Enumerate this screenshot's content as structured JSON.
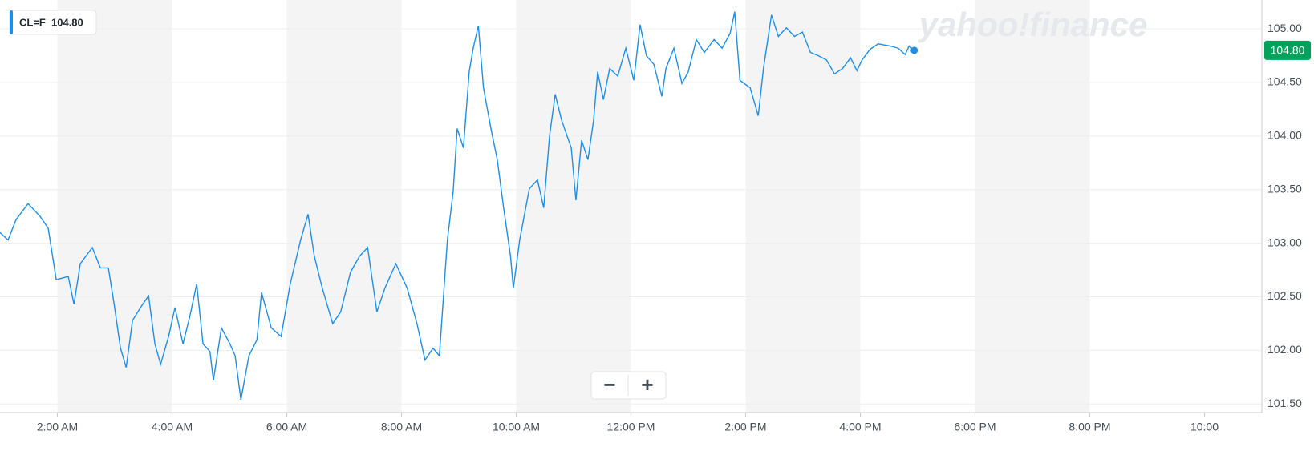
{
  "chart_data": {
    "type": "line",
    "x": [
      1.0,
      1.14,
      1.28,
      1.49,
      1.7,
      1.84,
      1.98,
      2.19,
      2.29,
      2.4,
      2.61,
      2.75,
      2.89,
      2.99,
      3.1,
      3.2,
      3.31,
      3.45,
      3.59,
      3.7,
      3.8,
      3.94,
      4.05,
      4.19,
      4.31,
      4.43,
      4.54,
      4.66,
      4.72,
      4.86,
      5.01,
      5.1,
      5.2,
      5.34,
      5.48,
      5.56,
      5.73,
      5.9,
      6.06,
      6.24,
      6.37,
      6.48,
      6.62,
      6.8,
      6.94,
      7.11,
      7.27,
      7.41,
      7.57,
      7.71,
      7.9,
      8.1,
      8.27,
      8.41,
      8.55,
      8.66,
      8.8,
      8.9,
      8.97,
      9.08,
      9.18,
      9.25,
      9.34,
      9.43,
      9.56,
      9.67,
      9.78,
      9.9,
      9.95,
      10.06,
      10.23,
      10.37,
      10.48,
      10.58,
      10.68,
      10.79,
      10.96,
      11.04,
      11.14,
      11.25,
      11.35,
      11.42,
      11.52,
      11.63,
      11.77,
      11.91,
      12.05,
      12.16,
      12.27,
      12.4,
      12.54,
      12.61,
      12.75,
      12.89,
      13.0,
      13.14,
      13.28,
      13.45,
      13.59,
      13.73,
      13.81,
      13.9,
      14.08,
      14.22,
      14.31,
      14.45,
      14.57,
      14.71,
      14.85,
      14.99,
      15.13,
      15.27,
      15.41,
      15.55,
      15.69,
      15.83,
      15.94,
      16.03,
      16.17,
      16.31,
      16.52,
      16.66,
      16.78,
      16.85,
      16.94
    ],
    "series": [
      {
        "name": "CL=F",
        "color": "#1e8fe8",
        "values": [
          103.1,
          103.03,
          103.22,
          103.37,
          103.25,
          103.14,
          102.66,
          102.69,
          102.43,
          102.81,
          102.96,
          102.77,
          102.77,
          102.43,
          102.02,
          101.84,
          102.28,
          102.4,
          102.51,
          102.06,
          101.87,
          102.13,
          102.4,
          102.06,
          102.32,
          102.62,
          102.06,
          101.99,
          101.72,
          102.21,
          102.06,
          101.95,
          101.54,
          101.95,
          102.1,
          102.54,
          102.21,
          102.13,
          102.62,
          103.03,
          103.27,
          102.88,
          102.58,
          102.25,
          102.36,
          102.73,
          102.88,
          102.96,
          102.36,
          102.58,
          102.81,
          102.58,
          102.25,
          101.91,
          102.02,
          101.95,
          103.03,
          103.48,
          104.07,
          103.89,
          104.6,
          104.82,
          105.03,
          104.45,
          104.07,
          103.78,
          103.33,
          102.88,
          102.58,
          103.03,
          103.51,
          103.59,
          103.33,
          104.0,
          104.39,
          104.15,
          103.89,
          103.4,
          103.96,
          103.78,
          104.15,
          104.6,
          104.34,
          104.63,
          104.56,
          104.82,
          104.52,
          105.04,
          104.75,
          104.67,
          104.37,
          104.63,
          104.82,
          104.49,
          104.6,
          104.9,
          104.78,
          104.9,
          104.82,
          104.96,
          105.16,
          104.52,
          104.45,
          104.19,
          104.63,
          105.13,
          104.93,
          105.01,
          104.93,
          104.97,
          104.78,
          104.75,
          104.71,
          104.58,
          104.63,
          104.73,
          104.61,
          104.71,
          104.81,
          104.86,
          104.84,
          104.82,
          104.76,
          104.84,
          104.8
        ]
      }
    ],
    "last_price": {
      "value": 104.8,
      "label": "104.80"
    },
    "xlim": [
      1,
      23
    ],
    "xticks": [
      {
        "value": 2,
        "label": "2:00 AM"
      },
      {
        "value": 4,
        "label": "4:00 AM"
      },
      {
        "value": 6,
        "label": "6:00 AM"
      },
      {
        "value": 8,
        "label": "8:00 AM"
      },
      {
        "value": 10,
        "label": "10:00 AM"
      },
      {
        "value": 12,
        "label": "12:00 PM"
      },
      {
        "value": 14,
        "label": "2:00 PM"
      },
      {
        "value": 16,
        "label": "4:00 PM"
      },
      {
        "value": 18,
        "label": "6:00 PM"
      },
      {
        "value": 20,
        "label": "8:00 PM"
      },
      {
        "value": 22,
        "label": "10:00"
      }
    ],
    "ylim": [
      101.42,
      105.27
    ],
    "yticks": [
      {
        "value": 101.5,
        "label": "101.50"
      },
      {
        "value": 102,
        "label": "102.00"
      },
      {
        "value": 102.5,
        "label": "102.50"
      },
      {
        "value": 103,
        "label": "103.00"
      },
      {
        "value": 103.5,
        "label": "103.50"
      },
      {
        "value": 104,
        "label": "104.00"
      },
      {
        "value": 104.5,
        "label": "104.50"
      },
      {
        "value": 105,
        "label": "105.00"
      }
    ],
    "grid": true,
    "watermark": "yahoo!finance",
    "zoom_controls": [
      "−",
      "+"
    ]
  }
}
